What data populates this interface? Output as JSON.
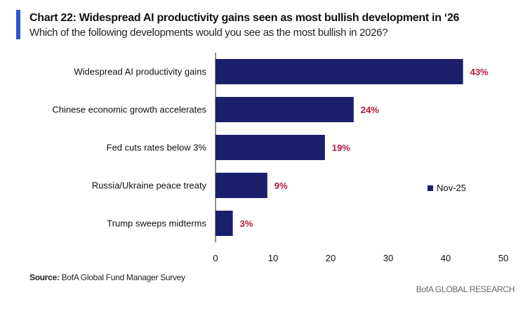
{
  "chart_data": {
    "type": "bar",
    "orientation": "horizontal",
    "title": "Chart 22: Widespread AI productivity gains seen as most bullish development in ‘26",
    "subtitle": "Which of the following developments would you see as the most bullish in 2026?",
    "categories": [
      "Widespread AI productivity gains",
      "Chinese economic growth accelerates",
      "Fed cuts rates below 3%",
      "Russia/Ukraine peace treaty",
      "Trump sweeps midterms"
    ],
    "series": [
      {
        "name": "Nov-25",
        "values": [
          43,
          24,
          19,
          9,
          3
        ]
      }
    ],
    "data_labels": [
      "43%",
      "24%",
      "19%",
      "9%",
      "3%"
    ],
    "xlim": [
      0,
      50
    ],
    "xticks": [
      "0",
      "10",
      "20",
      "30",
      "40",
      "50"
    ],
    "xlabel": "",
    "ylabel": "",
    "grid": false,
    "legend": "right",
    "colors": {
      "bar": "#1b1f6b",
      "label": "#b3193a",
      "accent": "#2f57c8"
    }
  },
  "source_label": "Source:",
  "source_text": " BofA Global Fund Manager Survey",
  "brand": "BofA GLOBAL RESEARCH"
}
